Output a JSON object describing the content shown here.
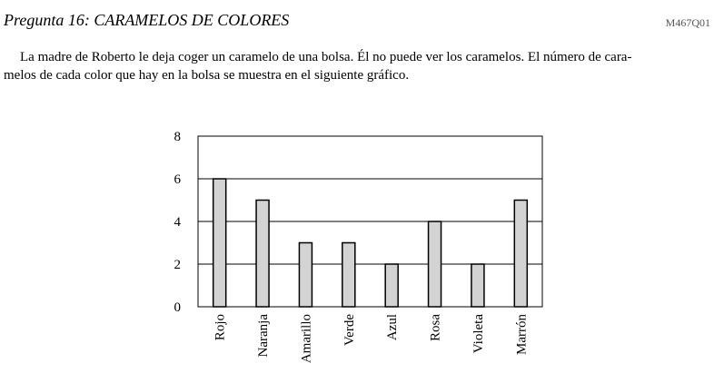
{
  "header": {
    "title": "Pregunta 16: CARAMELOS DE COLORES",
    "code": "M467Q01"
  },
  "intro": {
    "line1": "La madre de Roberto le deja coger un caramelo de una bolsa. Él no puede ver los caramelos. El número de cara-",
    "line2": "melos de cada color que hay en la bolsa se muestra en el siguiente gráfico."
  },
  "chart_data": {
    "type": "bar",
    "categories": [
      "Rojo",
      "Naranja",
      "Amarillo",
      "Verde",
      "Azul",
      "Rosa",
      "Violeta",
      "Marrón"
    ],
    "values": [
      6,
      5,
      3,
      3,
      2,
      4,
      2,
      5
    ],
    "title": "",
    "xlabel": "",
    "ylabel": "",
    "ylim": [
      0,
      8
    ],
    "yticks": [
      0,
      2,
      4,
      6,
      8
    ],
    "grid": true,
    "bar_color": "#d3d3d3",
    "bar_edge_color": "#000000"
  }
}
